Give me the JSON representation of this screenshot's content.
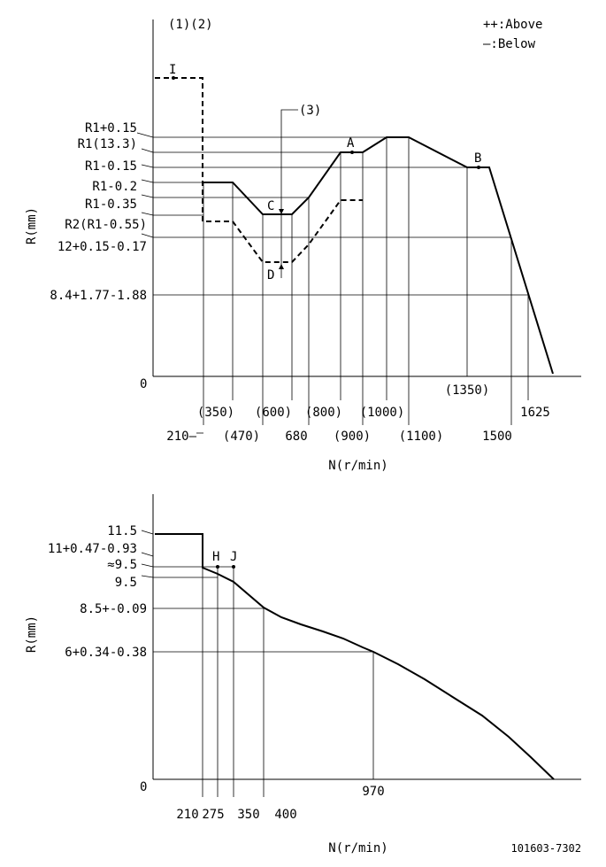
{
  "legend": {
    "above": "++:Above",
    "below": "—:Below"
  },
  "top": {
    "notes": {
      "n12": "(1)(2)",
      "n3": "(3)"
    },
    "ylabel": "R(mm)",
    "xlabel": "N(r/min)",
    "origin": "0",
    "y_labels": {
      "r1p015": "R1+0.15",
      "r1": "R1(13.3)",
      "r1m015": "R1-0.15",
      "r1m02": "R1-0.2",
      "r1m035": "R1-0.35",
      "r2": "R2(R1-0.55)",
      "r12": "12+0.15-0.17",
      "r84": "8.4+1.77-1.88"
    },
    "x_labels": {
      "x210": "210—",
      "x350": "(350)",
      "x470": "(470)",
      "x600": "(600)",
      "x680": "680",
      "x800": "(800)",
      "x900": "(900)",
      "x1000": "(1000)",
      "x1100": "(1100)",
      "x1350": "(1350)",
      "x1500": "1500",
      "x1625": "1625"
    },
    "points": {
      "I": "I",
      "A": "A",
      "B": "B",
      "C": "C",
      "D": "D"
    }
  },
  "bottom": {
    "ylabel": "R(mm)",
    "xlabel": "N(r/min)",
    "origin": "0",
    "y_labels": {
      "r115": "11.5",
      "r11": "11+0.47-0.93",
      "r95a": "≈9.5",
      "r95": "9.5",
      "r85": "8.5+-0.09",
      "r6": "6+0.34-0.38"
    },
    "x_labels": {
      "x210": "210",
      "x275": "275",
      "x350": "350",
      "x400": "400",
      "x970": "970"
    },
    "points": {
      "H": "H",
      "J": "J"
    }
  },
  "code": "101603-7302"
}
